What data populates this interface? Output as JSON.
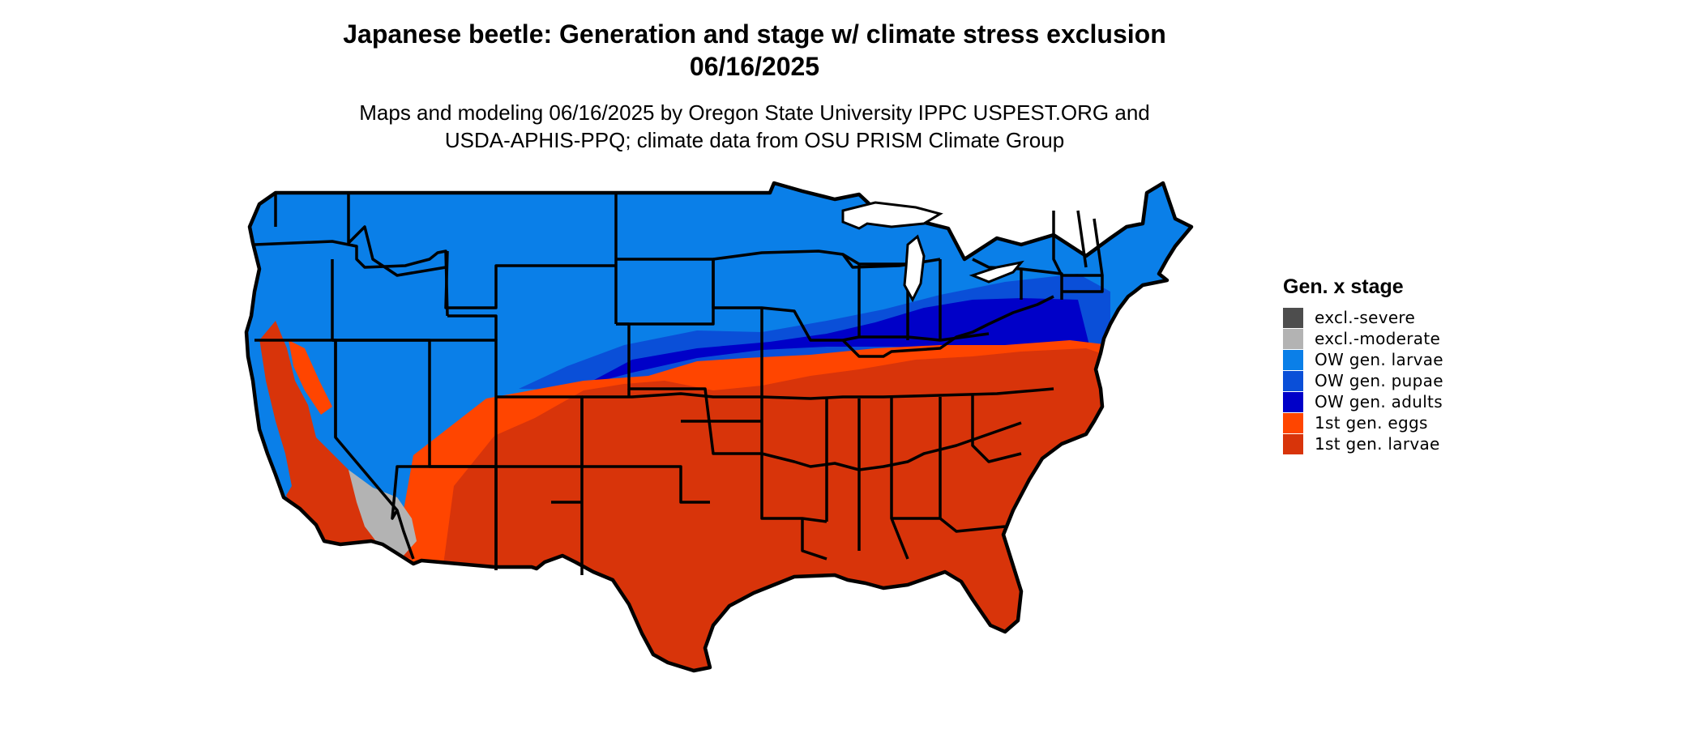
{
  "header": {
    "title_line1": "Japanese beetle: Generation and stage w/ climate stress exclusion",
    "title_line2": "06/16/2025",
    "subtitle_line1": "Maps and modeling 06/16/2025 by Oregon State University IPPC USPEST.ORG and",
    "subtitle_line2": "USDA-APHIS-PPQ; climate data from OSU PRISM Climate Group"
  },
  "legend": {
    "title": "Gen. x stage",
    "items": [
      {
        "label": "excl.-severe",
        "color": "#4d4d4d"
      },
      {
        "label": "excl.-moderate",
        "color": "#b3b3b3"
      },
      {
        "label": "OW gen. larvae",
        "color": "#0a7fe8"
      },
      {
        "label": "OW gen. pupae",
        "color": "#0a4fd8"
      },
      {
        "label": "OW gen. adults",
        "color": "#0000c8"
      },
      {
        "label": "1st gen. eggs",
        "color": "#ff4500"
      },
      {
        "label": "1st gen. larvae",
        "color": "#d8340a"
      }
    ]
  },
  "map": {
    "region": "contiguous-united-states",
    "border_color": "#000000"
  }
}
